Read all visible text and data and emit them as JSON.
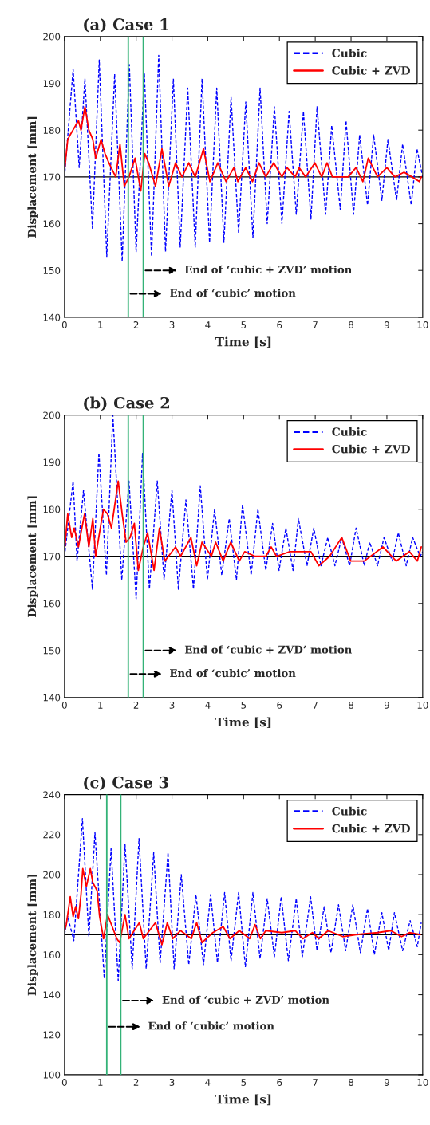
{
  "chart_data": [
    {
      "type": "line",
      "title": "(a) Case 1",
      "xlabel": "Time [s]",
      "ylabel": "Displacement [mm]",
      "xlim": [
        0,
        10
      ],
      "ylim": [
        140,
        200
      ],
      "xticks": [
        0,
        1,
        2,
        3,
        4,
        5,
        6,
        7,
        8,
        9,
        10
      ],
      "yticks": [
        140,
        150,
        160,
        170,
        180,
        190,
        200
      ],
      "grid": false,
      "legend": "top right",
      "series": [
        {
          "name": "Cubic",
          "color": "#0000ff",
          "line_style": "dashed",
          "x": [
            0,
            0.24,
            0.41,
            0.57,
            0.78,
            0.97,
            1.18,
            1.4,
            1.61,
            1.81,
            2.0,
            2.23,
            2.43,
            2.63,
            2.82,
            3.04,
            3.23,
            3.44,
            3.65,
            3.84,
            4.05,
            4.25,
            4.45,
            4.65,
            4.86,
            5.06,
            5.26,
            5.46,
            5.66,
            5.86,
            6.07,
            6.27,
            6.47,
            6.67,
            6.88,
            7.05,
            7.29,
            7.46,
            7.7,
            7.86,
            8.07,
            8.24,
            8.46,
            8.63,
            8.86,
            9.03,
            9.27,
            9.44,
            9.68,
            9.84,
            10
          ],
          "values": [
            170,
            193,
            172,
            191,
            159,
            195,
            153,
            192,
            152,
            194,
            154,
            192,
            153,
            196,
            154,
            191,
            155,
            189,
            155,
            191,
            156,
            189,
            156,
            187,
            158,
            186,
            157,
            189,
            160,
            185,
            160,
            184,
            162,
            184,
            161,
            185,
            162,
            181,
            163,
            182,
            162,
            179,
            164,
            179,
            165,
            178,
            165,
            177,
            164,
            176,
            170
          ]
        },
        {
          "name": "Cubic + ZVD",
          "color": "#ff0000",
          "line_style": "solid",
          "x": [
            0.01,
            0.09,
            0.16,
            0.31,
            0.39,
            0.46,
            0.57,
            0.68,
            0.79,
            0.87,
            1.02,
            1.13,
            1.24,
            1.43,
            1.55,
            1.67,
            1.8,
            1.97,
            2.13,
            2.24,
            2.35,
            2.54,
            2.72,
            2.91,
            3.1,
            3.28,
            3.47,
            3.65,
            3.88,
            4.06,
            4.28,
            4.51,
            4.73,
            4.84,
            5.06,
            5.25,
            5.43,
            5.62,
            5.84,
            6.07,
            6.21,
            6.44,
            6.55,
            6.73,
            6.99,
            7.18,
            7.33,
            7.48,
            7.7,
            7.92,
            8.14,
            8.33,
            8.48,
            8.74,
            9.0,
            9.22,
            9.48,
            9.7,
            9.91,
            9.96
          ],
          "values": [
            172,
            178,
            179,
            181,
            182,
            180,
            185,
            180,
            178,
            174,
            178,
            175,
            173,
            170,
            177,
            168,
            170,
            174,
            167,
            175,
            173,
            168,
            176,
            168,
            173,
            170,
            173,
            170,
            176,
            169,
            173,
            169,
            172,
            169,
            172,
            169,
            173,
            170,
            173,
            170,
            172,
            170,
            172,
            170,
            173,
            170,
            173,
            170,
            170,
            170,
            172,
            169,
            174,
            170,
            172,
            170,
            171,
            170,
            169,
            170
          ]
        }
      ],
      "ref_lines": [
        {
          "axis": "y",
          "value": 170,
          "color": "#000000"
        },
        {
          "axis": "x",
          "value": 1.78,
          "color": "#33b277"
        },
        {
          "axis": "x",
          "value": 2.2,
          "color": "#33b277"
        }
      ],
      "annotations": [
        {
          "text": "End of ‘cubic + ZVD’ motion",
          "x": 2.2,
          "y": 150
        },
        {
          "text": "End of ‘cubic’ motion",
          "x": 1.78,
          "y": 145
        }
      ]
    },
    {
      "type": "line",
      "title": "(b) Case 2",
      "xlabel": "Time [s]",
      "ylabel": "Displacement [mm]",
      "xlim": [
        0,
        10
      ],
      "ylim": [
        140,
        200
      ],
      "xticks": [
        0,
        1,
        2,
        3,
        4,
        5,
        6,
        7,
        8,
        9,
        10
      ],
      "yticks": [
        140,
        150,
        160,
        170,
        180,
        190,
        200
      ],
      "grid": false,
      "legend": "top right",
      "series": [
        {
          "name": "Cubic",
          "color": "#0000ff",
          "line_style": "dashed",
          "x": [
            0,
            0.24,
            0.35,
            0.53,
            0.78,
            0.96,
            1.17,
            1.35,
            1.6,
            1.8,
            2.0,
            2.18,
            2.37,
            2.59,
            2.78,
            3.0,
            3.18,
            3.39,
            3.6,
            3.79,
            3.99,
            4.19,
            4.39,
            4.6,
            4.8,
            4.97,
            5.21,
            5.4,
            5.62,
            5.81,
            5.99,
            6.18,
            6.38,
            6.53,
            6.77,
            6.96,
            7.16,
            7.35,
            7.55,
            7.74,
            7.96,
            8.14,
            8.37,
            8.52,
            8.74,
            8.92,
            9.15,
            9.32,
            9.54,
            9.72,
            9.93,
            10
          ],
          "values": [
            170,
            186,
            169,
            184,
            163,
            192,
            166,
            200,
            165,
            186,
            161,
            192,
            163,
            186,
            165,
            184,
            163,
            182,
            163,
            185,
            165,
            180,
            166,
            178,
            165,
            181,
            166,
            180,
            167,
            177,
            167,
            176,
            167,
            178,
            168,
            176,
            168,
            174,
            168,
            174,
            168,
            176,
            168,
            173,
            168,
            174,
            169,
            175,
            168,
            174,
            170,
            171
          ]
        },
        {
          "name": "Cubic + ZVD",
          "color": "#ff0000",
          "line_style": "solid",
          "x": [
            0.01,
            0.09,
            0.2,
            0.27,
            0.39,
            0.46,
            0.56,
            0.68,
            0.79,
            0.87,
            1.02,
            1.09,
            1.2,
            1.31,
            1.5,
            1.61,
            1.72,
            1.83,
            1.95,
            2.06,
            2.2,
            2.32,
            2.5,
            2.65,
            2.8,
            3.1,
            3.24,
            3.53,
            3.69,
            3.84,
            4.1,
            4.22,
            4.43,
            4.64,
            4.88,
            5.03,
            5.32,
            5.62,
            5.77,
            5.92,
            6.29,
            6.51,
            6.88,
            7.1,
            7.4,
            7.74,
            7.99,
            8.37,
            8.89,
            9.26,
            9.63,
            9.85,
            9.96
          ],
          "values": [
            172,
            179,
            174,
            176,
            172,
            175,
            179,
            172,
            178,
            170,
            177,
            180,
            179,
            176,
            186,
            179,
            173,
            174,
            177,
            167,
            172,
            175,
            167,
            176,
            169,
            172,
            170,
            174,
            168,
            173,
            170,
            173,
            169,
            173,
            169,
            171,
            170,
            170,
            172,
            170,
            171,
            171,
            171,
            168,
            170,
            174,
            169,
            169,
            172,
            169,
            171,
            169,
            172
          ]
        }
      ],
      "ref_lines": [
        {
          "axis": "y",
          "value": 170,
          "color": "#000000"
        },
        {
          "axis": "x",
          "value": 1.78,
          "color": "#33b277"
        },
        {
          "axis": "x",
          "value": 2.2,
          "color": "#33b277"
        }
      ],
      "annotations": [
        {
          "text": "End of ‘cubic + ZVD’ motion",
          "x": 2.2,
          "y": 150
        },
        {
          "text": "End of ‘cubic’ motion",
          "x": 1.78,
          "y": 145
        }
      ]
    },
    {
      "type": "line",
      "title": "(c) Case 3",
      "xlabel": "Time [s]",
      "ylabel": "Displacement [mm]",
      "xlim": [
        0,
        10
      ],
      "ylim": [
        100,
        240
      ],
      "xticks": [
        0,
        1,
        2,
        3,
        4,
        5,
        6,
        7,
        8,
        9,
        10
      ],
      "yticks": [
        100,
        120,
        140,
        160,
        180,
        200,
        220,
        240
      ],
      "grid": false,
      "legend": "top right",
      "series": [
        {
          "name": "Cubic",
          "color": "#0000ff",
          "line_style": "dashed",
          "x": [
            0,
            0.09,
            0.26,
            0.5,
            0.68,
            0.85,
            1.11,
            1.3,
            1.5,
            1.69,
            1.89,
            2.08,
            2.28,
            2.49,
            2.67,
            2.89,
            3.06,
            3.26,
            3.47,
            3.67,
            3.88,
            4.08,
            4.27,
            4.47,
            4.65,
            4.86,
            5.05,
            5.26,
            5.46,
            5.66,
            5.86,
            6.05,
            6.25,
            6.47,
            6.64,
            6.87,
            7.05,
            7.25,
            7.44,
            7.65,
            7.85,
            8.05,
            8.26,
            8.46,
            8.65,
            8.86,
            9.05,
            9.21,
            9.44,
            9.65,
            9.85,
            9.96
          ],
          "values": [
            170,
            179,
            167,
            228,
            169,
            221,
            148,
            213,
            147,
            215,
            153,
            218,
            153,
            211,
            156,
            211,
            153,
            200,
            155,
            190,
            155,
            190,
            156,
            191,
            157,
            191,
            154,
            191,
            158,
            188,
            159,
            189,
            157,
            188,
            159,
            189,
            162,
            184,
            161,
            185,
            162,
            185,
            161,
            183,
            160,
            181,
            162,
            181,
            162,
            177,
            164,
            176
          ]
        },
        {
          "name": "Cubic + ZVD",
          "color": "#ff0000",
          "line_style": "solid",
          "x": [
            0,
            0.05,
            0.16,
            0.24,
            0.31,
            0.39,
            0.46,
            0.51,
            0.61,
            0.72,
            0.79,
            0.91,
            0.98,
            1.09,
            1.2,
            1.31,
            1.46,
            1.54,
            1.69,
            1.8,
            2.09,
            2.2,
            2.54,
            2.72,
            2.87,
            3.02,
            3.24,
            3.54,
            3.69,
            3.84,
            4.14,
            4.43,
            4.62,
            4.88,
            5.17,
            5.32,
            5.47,
            5.62,
            6.07,
            6.44,
            6.66,
            6.92,
            7.1,
            7.36,
            7.77,
            8.14,
            8.74,
            9.11,
            9.41,
            9.63,
            9.93
          ],
          "values": [
            172,
            175,
            189,
            179,
            184,
            178,
            190,
            203,
            194,
            203,
            196,
            192,
            179,
            168,
            180,
            175,
            168,
            166,
            180,
            168,
            176,
            168,
            176,
            165,
            176,
            168,
            172,
            168,
            176,
            166,
            171,
            174,
            168,
            172,
            168,
            175,
            168,
            172,
            171,
            172,
            168,
            171,
            168,
            172,
            169,
            170,
            171,
            172,
            169,
            171,
            170
          ]
        }
      ],
      "ref_lines": [
        {
          "axis": "y",
          "value": 170,
          "color": "#000000"
        },
        {
          "axis": "x",
          "value": 1.18,
          "color": "#33b277"
        },
        {
          "axis": "x",
          "value": 1.57,
          "color": "#33b277"
        }
      ],
      "annotations": [
        {
          "text": "End of ‘cubic + ZVD’ motion",
          "x": 1.57,
          "y": 137
        },
        {
          "text": "End of ‘cubic’ motion",
          "x": 1.18,
          "y": 124
        }
      ]
    }
  ]
}
